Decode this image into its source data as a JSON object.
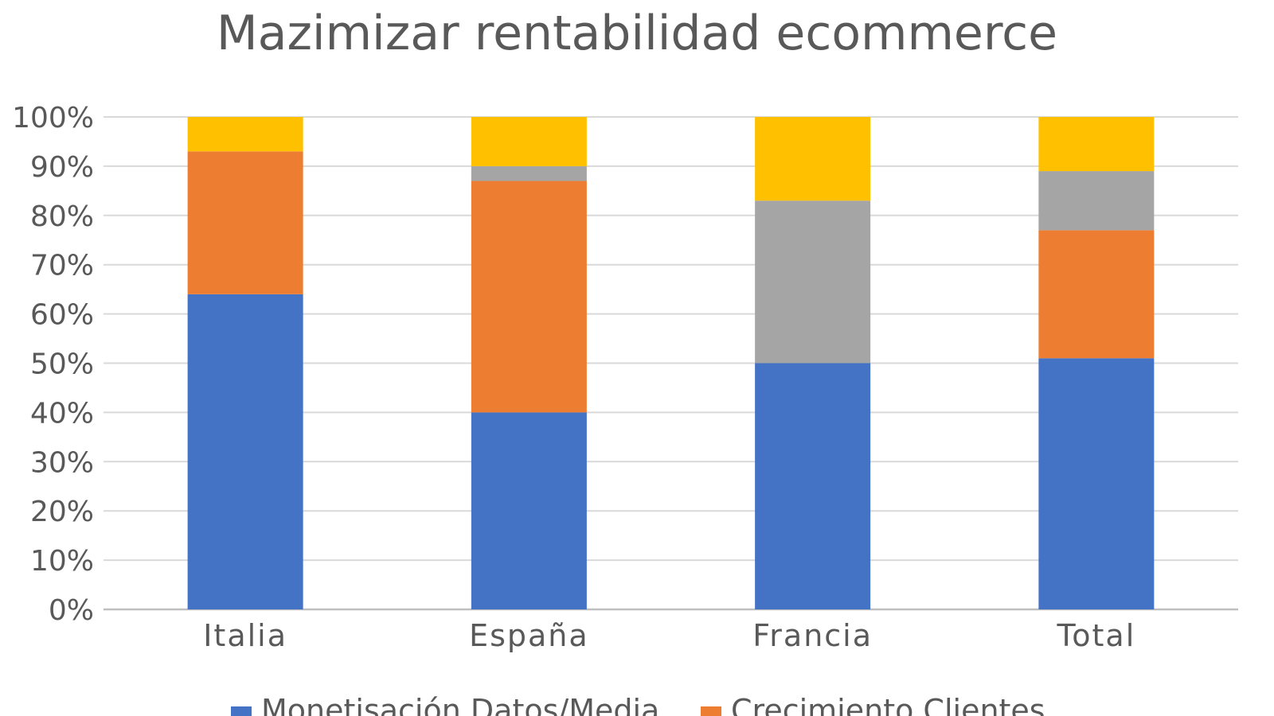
{
  "chart_data": {
    "type": "bar",
    "stacked": true,
    "title": "Mazimizar rentabilidad ecommerce",
    "categories": [
      "Italia",
      "España",
      "Francia",
      "Total"
    ],
    "ylim": [
      0,
      100
    ],
    "yticks": [
      "0%",
      "10%",
      "20%",
      "30%",
      "40%",
      "50%",
      "60%",
      "70%",
      "80%",
      "90%",
      "100%"
    ],
    "grid": true,
    "legend_position": "bottom",
    "series": [
      {
        "name": "Monetisación Datos/Media",
        "color": "#4472c4",
        "values": [
          64,
          40,
          50,
          51
        ]
      },
      {
        "name": "Crecimiento Clientes",
        "color": "#ed7d31",
        "values": [
          29,
          47,
          0,
          26
        ]
      },
      {
        "color": "#a5a5a5",
        "values": [
          0,
          3,
          33,
          12
        ]
      },
      {
        "color": "#ffc000",
        "values": [
          7,
          10,
          17,
          11
        ]
      }
    ]
  }
}
